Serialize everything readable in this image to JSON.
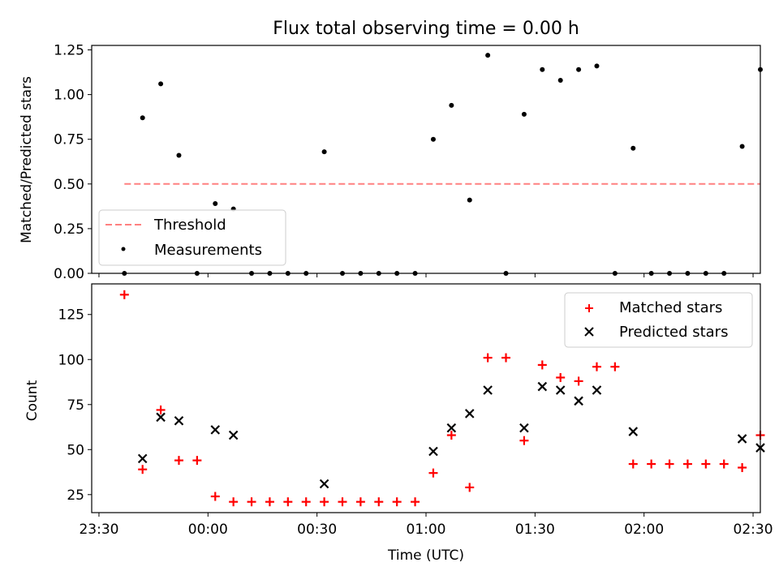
{
  "chart_data": [
    {
      "type": "scatter",
      "title": "Flux total observing time = 0.00 h",
      "xlabel": "",
      "ylabel": "Matched/Predicted stars",
      "ylim": [
        0,
        1.275
      ],
      "yticks": [
        "0.00",
        "0.25",
        "0.50",
        "0.75",
        "1.00",
        "1.25"
      ],
      "ytick_values": [
        0,
        0.25,
        0.5,
        0.75,
        1.0,
        1.25
      ],
      "legend_position": "lower-left",
      "threshold": {
        "name": "Threshold",
        "value": 0.5,
        "x_range": [
          "23:37",
          "02:32"
        ],
        "color": "#ff8080"
      },
      "series": [
        {
          "name": "Measurements",
          "color": "#000000",
          "x": [
            "23:37",
            "23:42",
            "23:47",
            "23:52",
            "23:57",
            "00:02",
            "00:07",
            "00:12",
            "00:17",
            "00:22",
            "00:27",
            "00:32",
            "00:37",
            "00:42",
            "00:47",
            "00:52",
            "00:57",
            "01:02",
            "01:07",
            "01:12",
            "01:17",
            "01:22",
            "01:27",
            "01:32",
            "01:37",
            "01:42",
            "01:47",
            "01:52",
            "01:57",
            "02:02",
            "02:07",
            "02:12",
            "02:17",
            "02:22",
            "02:27",
            "02:32"
          ],
          "values": [
            0,
            0.87,
            1.06,
            0.66,
            0,
            0.39,
            0.36,
            0,
            0,
            0,
            0,
            0.68,
            0,
            0,
            0,
            0,
            0,
            0.75,
            0.94,
            0.41,
            1.22,
            0,
            0.89,
            1.14,
            1.08,
            1.14,
            1.16,
            0,
            0.7,
            0,
            0,
            0,
            0,
            0,
            0.71,
            1.14
          ]
        }
      ]
    },
    {
      "type": "scatter",
      "title": "",
      "xlabel": "Time (UTC)",
      "ylabel": "Count",
      "ylim": [
        15,
        142
      ],
      "yticks": [
        "25",
        "50",
        "75",
        "100",
        "125"
      ],
      "ytick_values": [
        25,
        50,
        75,
        100,
        125
      ],
      "xticks": [
        "23:30",
        "00:00",
        "00:30",
        "01:00",
        "01:30",
        "02:00",
        "02:30"
      ],
      "xtick_values": [
        "23:30",
        "00:00",
        "00:30",
        "01:00",
        "01:30",
        "02:00",
        "02:30"
      ],
      "xlim": [
        "23:28",
        "02:32"
      ],
      "legend_position": "top-right",
      "series": [
        {
          "name": "Matched stars",
          "color": "#ff0000",
          "marker": "plus",
          "x": [
            "23:37",
            "23:42",
            "23:47",
            "23:52",
            "23:57",
            "00:02",
            "00:07",
            "00:12",
            "00:17",
            "00:22",
            "00:27",
            "00:32",
            "00:37",
            "00:42",
            "00:47",
            "00:52",
            "00:57",
            "01:02",
            "01:07",
            "01:12",
            "01:17",
            "01:22",
            "01:27",
            "01:32",
            "01:37",
            "01:42",
            "01:47",
            "01:52",
            "01:57",
            "02:02",
            "02:07",
            "02:12",
            "02:17",
            "02:22",
            "02:27",
            "02:32"
          ],
          "values": [
            136,
            39,
            72,
            44,
            44,
            24,
            21,
            21,
            21,
            21,
            21,
            21,
            21,
            21,
            21,
            21,
            21,
            37,
            58,
            29,
            101,
            101,
            55,
            97,
            90,
            88,
            96,
            96,
            42,
            42,
            42,
            42,
            42,
            42,
            40,
            58
          ]
        },
        {
          "name": "Predicted stars",
          "color": "#000000",
          "marker": "x",
          "x": [
            "23:42",
            "23:47",
            "23:52",
            "00:02",
            "00:07",
            "00:32",
            "01:02",
            "01:07",
            "01:12",
            "01:17",
            "01:27",
            "01:32",
            "01:37",
            "01:42",
            "01:47",
            "01:57",
            "02:27",
            "02:32"
          ],
          "values": [
            45,
            68,
            66,
            61,
            58,
            31,
            49,
            62,
            70,
            83,
            62,
            85,
            83,
            77,
            83,
            60,
            56,
            51
          ]
        }
      ]
    }
  ]
}
